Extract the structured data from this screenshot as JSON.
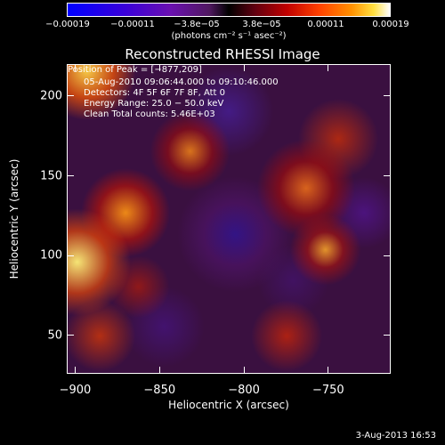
{
  "colorbar": {
    "ticks": [
      "−0.00019",
      "−0.00011",
      "−3.8e−05",
      "3.8e−05",
      "0.00011",
      "0.00019"
    ],
    "units": "(photons cm⁻² s⁻¹ asec⁻²)"
  },
  "info": {
    "time": "05-Aug-2010 09:06:44.000 to 09:10:46.000",
    "detectors": "Detectors: 4F 5F 6F 7F 8F, Att 0",
    "energy": "Energy Range: 25.0 − 50.0 keV",
    "clean": "Clean    Total counts: 5.46E+03",
    "peak": "Position of Peak = [−877,209]"
  },
  "timestamp": "3-Aug-2013 16:53",
  "chart_data": {
    "type": "heatmap",
    "title": "Reconstructed RHESSI Image",
    "xlabel": "Heliocentric X (arcsec)",
    "ylabel": "Heliocentric Y (arcsec)",
    "xlim": [
      -905,
      -713
    ],
    "ylim": [
      26,
      220
    ],
    "xticks": [
      -900,
      -850,
      -800,
      -750
    ],
    "xticklabels": [
      "−900",
      "−850",
      "−800",
      "−750"
    ],
    "yticks": [
      50,
      100,
      150,
      200
    ],
    "yticklabels": [
      "50",
      "100",
      "150",
      "200"
    ],
    "colorbar_range": [
      -0.00019,
      0.00019
    ],
    "peak_position": [
      -877,
      209
    ]
  }
}
